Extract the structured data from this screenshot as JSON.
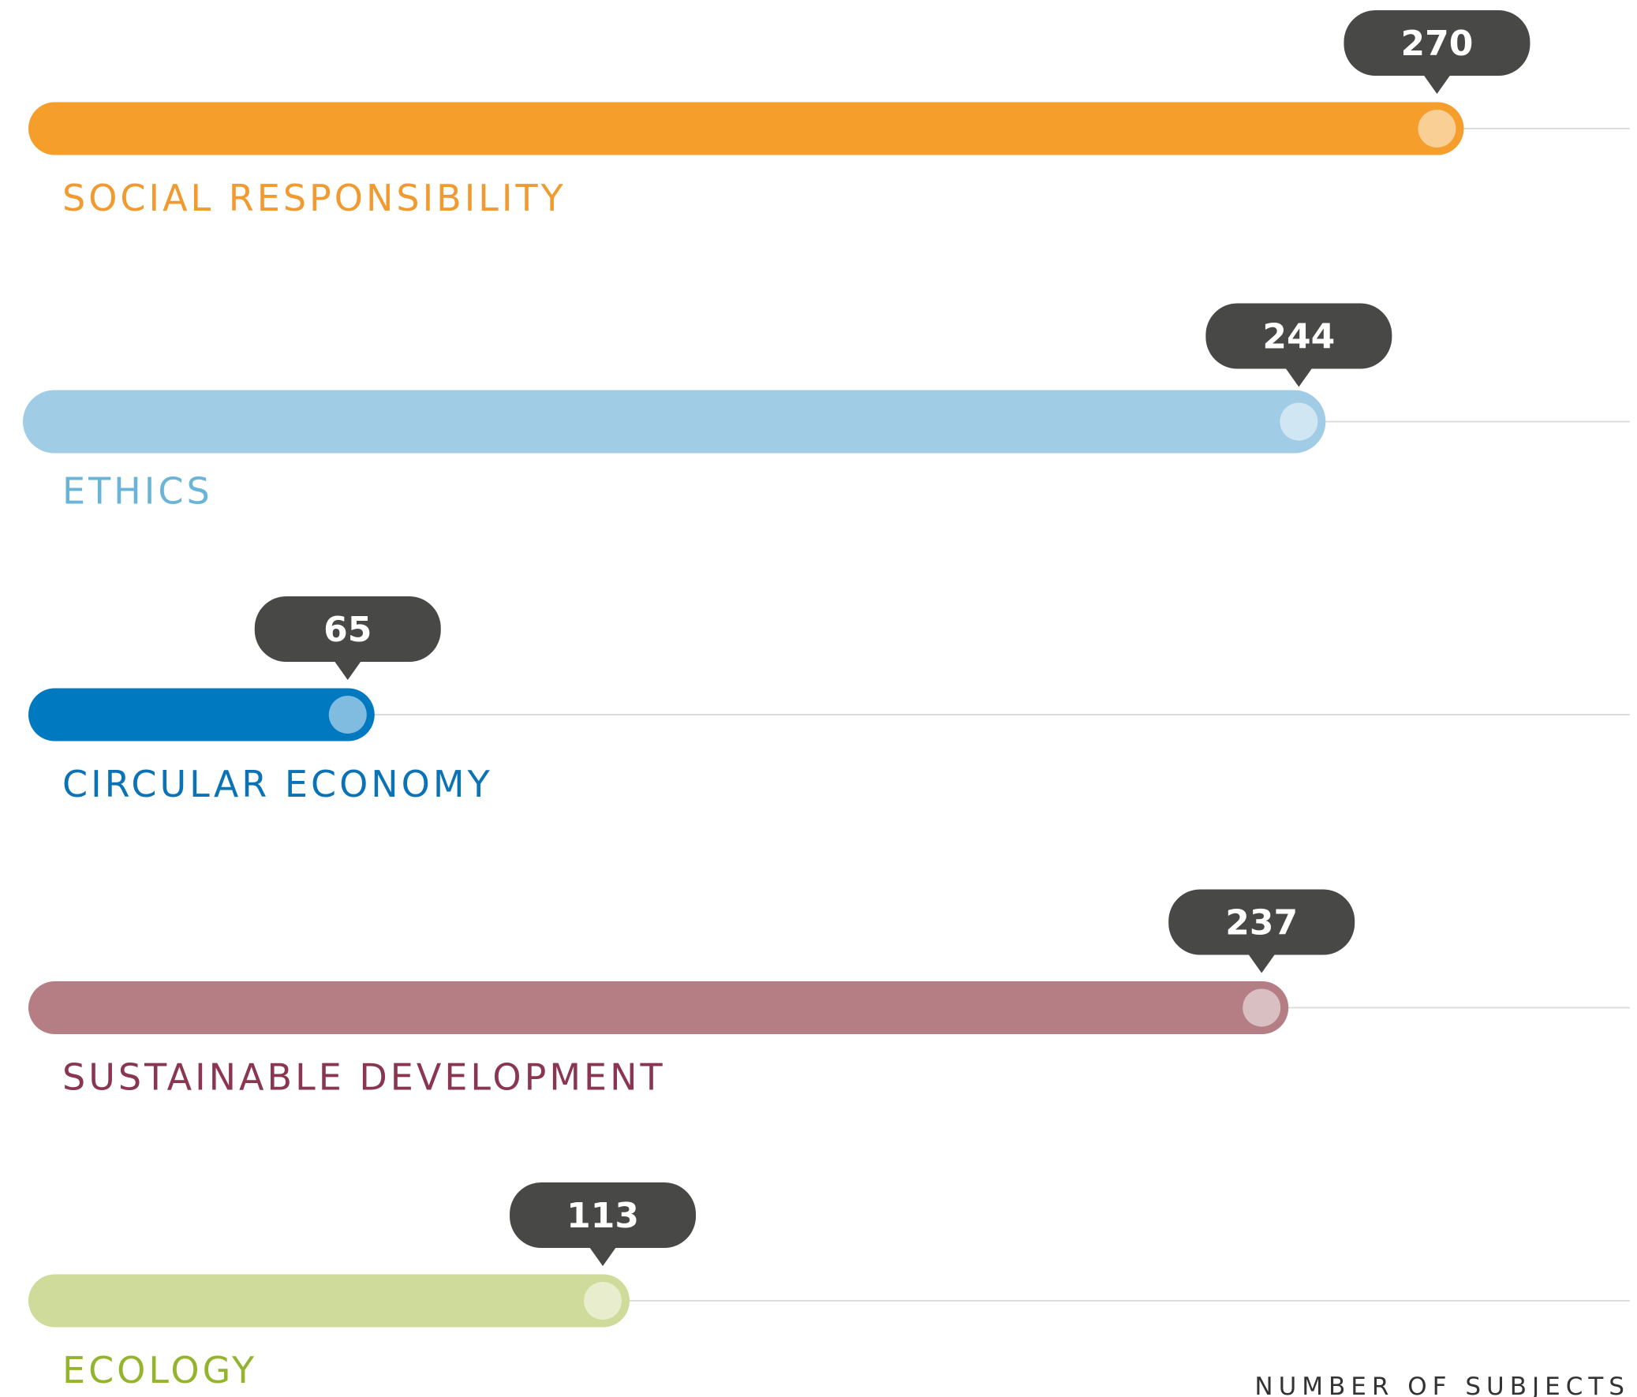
{
  "chart_data": {
    "type": "bar",
    "orientation": "horizontal",
    "categories": [
      "SOCIAL RESPONSIBILITY",
      "ETHICS",
      "CIRCULAR ECONOMY",
      "SUSTAINABLE DEVELOPMENT",
      "ECOLOGY"
    ],
    "values": [
      270,
      244,
      65,
      237,
      113
    ],
    "colors": [
      "#f59e2c",
      "#a0cce5",
      "#0079c1",
      "#b57e84",
      "#cfdb9a"
    ],
    "label_colors": [
      "#f09a30",
      "#6ab4d8",
      "#0a72b5",
      "#8b3650",
      "#95b42e"
    ],
    "x_label": "NUMBER OF SUBJECTS"
  }
}
